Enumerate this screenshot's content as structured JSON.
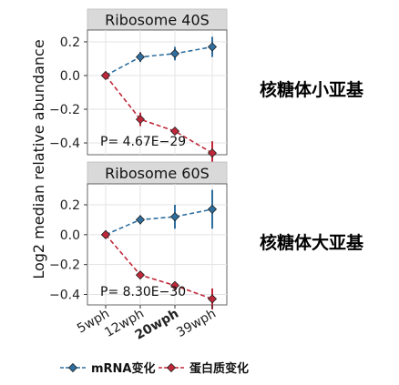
{
  "chart_data": {
    "type": "line",
    "ylabel": "Log2 median relative abundance",
    "categories": [
      "5wph",
      "12wph",
      "20wph",
      "39wph"
    ],
    "yticks": [
      0.2,
      0.0,
      -0.2,
      -0.4
    ],
    "ytick_labels": [
      "0.2",
      "0.0",
      "−0.2",
      "−0.4"
    ],
    "legend_position": "bottom",
    "grid": true,
    "legend": [
      {
        "name": "mRNA变化",
        "color": "#2f6f9f"
      },
      {
        "name": "蛋白质变化",
        "color": "#c0283a"
      }
    ],
    "panels": [
      {
        "title": "Ribosome 40S",
        "annotation": "P= 4.67E−29",
        "side_label": "核糖体小亚基",
        "ylim": [
          -0.47,
          0.27
        ],
        "series": [
          {
            "name": "mRNA变化",
            "values": [
              0.0,
              0.11,
              0.13,
              0.17
            ],
            "err": [
              0.0,
              0.03,
              0.04,
              0.06
            ]
          },
          {
            "name": "蛋白质变化",
            "values": [
              0.0,
              -0.26,
              -0.33,
              -0.46
            ],
            "err": [
              0.0,
              0.04,
              0.0,
              0.07
            ]
          }
        ]
      },
      {
        "title": "Ribosome 60S",
        "annotation": "P= 8.30E−30",
        "side_label": "核糖体大亚基",
        "ylim": [
          -0.47,
          0.34
        ],
        "series": [
          {
            "name": "mRNA变化",
            "values": [
              0.0,
              0.1,
              0.12,
              0.17
            ],
            "err": [
              0.0,
              0.03,
              0.08,
              0.13
            ]
          },
          {
            "name": "蛋白质变化",
            "values": [
              0.0,
              -0.27,
              -0.34,
              -0.43
            ],
            "err": [
              0.0,
              0.02,
              0.0,
              0.07
            ]
          }
        ]
      }
    ]
  }
}
